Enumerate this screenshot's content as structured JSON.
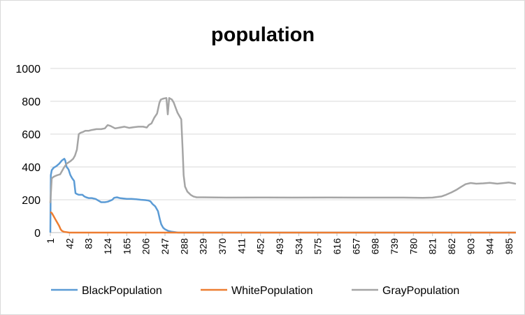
{
  "chart_data": {
    "type": "line",
    "title": "population",
    "xlabel": "",
    "ylabel": "",
    "xlim": [
      1,
      1000
    ],
    "ylim": [
      0,
      1000
    ],
    "y_ticks": [
      0,
      200,
      400,
      600,
      800,
      1000
    ],
    "x_ticks": [
      1,
      42,
      83,
      124,
      165,
      206,
      247,
      288,
      329,
      370,
      411,
      452,
      493,
      534,
      575,
      616,
      657,
      698,
      739,
      780,
      821,
      862,
      903,
      944,
      985
    ],
    "grid": "horizontal",
    "legend": "bottom",
    "series": [
      {
        "name": "BlackPopulation",
        "color": "#5b9bd5",
        "points": [
          [
            1,
            0
          ],
          [
            2,
            350
          ],
          [
            4,
            380
          ],
          [
            8,
            395
          ],
          [
            14,
            405
          ],
          [
            20,
            420
          ],
          [
            26,
            440
          ],
          [
            31,
            450
          ],
          [
            33,
            440
          ],
          [
            36,
            400
          ],
          [
            40,
            385
          ],
          [
            44,
            350
          ],
          [
            48,
            330
          ],
          [
            52,
            315
          ],
          [
            55,
            240
          ],
          [
            58,
            235
          ],
          [
            62,
            230
          ],
          [
            70,
            230
          ],
          [
            74,
            220
          ],
          [
            78,
            215
          ],
          [
            83,
            210
          ],
          [
            90,
            210
          ],
          [
            98,
            205
          ],
          [
            104,
            195
          ],
          [
            110,
            185
          ],
          [
            118,
            185
          ],
          [
            124,
            188
          ],
          [
            130,
            195
          ],
          [
            134,
            200
          ],
          [
            138,
            212
          ],
          [
            144,
            215
          ],
          [
            150,
            210
          ],
          [
            165,
            205
          ],
          [
            175,
            205
          ],
          [
            185,
            203
          ],
          [
            195,
            200
          ],
          [
            205,
            198
          ],
          [
            212,
            195
          ],
          [
            216,
            190
          ],
          [
            220,
            175
          ],
          [
            226,
            160
          ],
          [
            232,
            130
          ],
          [
            236,
            80
          ],
          [
            239,
            50
          ],
          [
            243,
            30
          ],
          [
            247,
            20
          ],
          [
            254,
            10
          ],
          [
            262,
            5
          ],
          [
            275,
            0
          ],
          [
            1000,
            0
          ]
        ]
      },
      {
        "name": "WhitePopulation",
        "color": "#ed7d31",
        "points": [
          [
            1,
            125
          ],
          [
            4,
            120
          ],
          [
            8,
            100
          ],
          [
            12,
            80
          ],
          [
            16,
            60
          ],
          [
            20,
            40
          ],
          [
            23,
            20
          ],
          [
            26,
            10
          ],
          [
            30,
            5
          ],
          [
            42,
            0
          ],
          [
            1000,
            0
          ]
        ]
      },
      {
        "name": "GrayPopulation",
        "color": "#a5a5a5",
        "points": [
          [
            1,
            180
          ],
          [
            4,
            330
          ],
          [
            8,
            340
          ],
          [
            12,
            345
          ],
          [
            16,
            350
          ],
          [
            22,
            355
          ],
          [
            26,
            375
          ],
          [
            30,
            395
          ],
          [
            36,
            420
          ],
          [
            44,
            435
          ],
          [
            50,
            450
          ],
          [
            54,
            470
          ],
          [
            58,
            505
          ],
          [
            62,
            600
          ],
          [
            66,
            608
          ],
          [
            70,
            612
          ],
          [
            76,
            620
          ],
          [
            83,
            620
          ],
          [
            90,
            625
          ],
          [
            100,
            630
          ],
          [
            110,
            630
          ],
          [
            118,
            635
          ],
          [
            124,
            655
          ],
          [
            130,
            650
          ],
          [
            140,
            635
          ],
          [
            150,
            640
          ],
          [
            160,
            645
          ],
          [
            170,
            638
          ],
          [
            180,
            642
          ],
          [
            190,
            645
          ],
          [
            200,
            645
          ],
          [
            208,
            640
          ],
          [
            212,
            655
          ],
          [
            218,
            665
          ],
          [
            224,
            700
          ],
          [
            230,
            725
          ],
          [
            235,
            790
          ],
          [
            238,
            810
          ],
          [
            242,
            815
          ],
          [
            246,
            818
          ],
          [
            250,
            820
          ],
          [
            253,
            720
          ],
          [
            256,
            820
          ],
          [
            262,
            810
          ],
          [
            266,
            790
          ],
          [
            270,
            760
          ],
          [
            274,
            730
          ],
          [
            278,
            710
          ],
          [
            282,
            690
          ],
          [
            285,
            500
          ],
          [
            287,
            350
          ],
          [
            290,
            280
          ],
          [
            295,
            250
          ],
          [
            302,
            230
          ],
          [
            308,
            220
          ],
          [
            315,
            215
          ],
          [
            329,
            215
          ],
          [
            380,
            213
          ],
          [
            450,
            214
          ],
          [
            520,
            213
          ],
          [
            600,
            214
          ],
          [
            680,
            213
          ],
          [
            760,
            213
          ],
          [
            800,
            212
          ],
          [
            821,
            213
          ],
          [
            840,
            220
          ],
          [
            850,
            230
          ],
          [
            862,
            245
          ],
          [
            872,
            260
          ],
          [
            882,
            278
          ],
          [
            892,
            295
          ],
          [
            903,
            302
          ],
          [
            915,
            298
          ],
          [
            930,
            300
          ],
          [
            944,
            303
          ],
          [
            960,
            298
          ],
          [
            975,
            302
          ],
          [
            985,
            305
          ],
          [
            995,
            300
          ],
          [
            1000,
            297
          ]
        ]
      }
    ]
  }
}
